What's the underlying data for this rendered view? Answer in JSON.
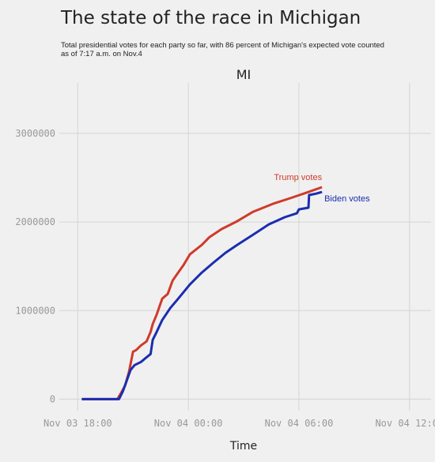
{
  "chart_data": {
    "type": "line",
    "title": "The state of the race in Michigan",
    "subtitle": "Total presidential votes for each party so far, with 86 percent of Michigan's expected vote counted as of 7:17 a.m. on Nov.4",
    "panel_title": "MI",
    "x_label": "Time",
    "xlim": [
      "Nov 03 17:00",
      "Nov 04 13:10"
    ],
    "xticks": [
      "Nov 03 18:00",
      "Nov 04 00:00",
      "Nov 04 06:00",
      "Nov 04 12:00"
    ],
    "ylim": [
      -130000,
      3570000
    ],
    "yticks": [
      0,
      1000000,
      2000000,
      3000000
    ],
    "grid": true,
    "series": [
      {
        "name": "Trump votes",
        "color": "#d03a2a",
        "x": [
          "Nov 03 18:13",
          "Nov 03 20:09",
          "Nov 03 20:21",
          "Nov 03 20:34",
          "Nov 03 20:47",
          "Nov 03 21:00",
          "Nov 03 21:10",
          "Nov 03 21:26",
          "Nov 03 21:44",
          "Nov 03 21:57",
          "Nov 03 22:04",
          "Nov 03 22:17",
          "Nov 03 22:35",
          "Nov 03 22:53",
          "Nov 03 23:09",
          "Nov 03 23:27",
          "Nov 03 23:45",
          "Nov 04 00:05",
          "Nov 04 00:44",
          "Nov 04 01:09",
          "Nov 04 01:48",
          "Nov 04 02:39",
          "Nov 04 03:31",
          "Nov 04 04:35",
          "Nov 04 05:39",
          "Nov 04 06:31",
          "Nov 04 07:15"
        ],
        "values": [
          0,
          0,
          71000,
          152000,
          313000,
          536000,
          554000,
          607000,
          652000,
          759000,
          848000,
          955000,
          1134000,
          1188000,
          1339000,
          1429000,
          1518000,
          1634000,
          1741000,
          1830000,
          1920000,
          2009000,
          2116000,
          2205000,
          2277000,
          2339000,
          2393000
        ]
      },
      {
        "name": "Biden votes",
        "color": "#1a2db0",
        "x": [
          "Nov 03 18:13",
          "Nov 03 20:14",
          "Nov 03 20:27",
          "Nov 03 20:39",
          "Nov 03 20:52",
          "Nov 03 21:05",
          "Nov 03 21:26",
          "Nov 03 21:44",
          "Nov 03 21:57",
          "Nov 03 22:04",
          "Nov 03 22:17",
          "Nov 03 22:35",
          "Nov 03 23:01",
          "Nov 03 23:27",
          "Nov 04 00:05",
          "Nov 04 00:44",
          "Nov 04 01:23",
          "Nov 04 02:01",
          "Nov 04 02:39",
          "Nov 04 03:31",
          "Nov 04 04:22",
          "Nov 04 05:14",
          "Nov 04 05:53",
          "Nov 04 06:00",
          "Nov 04 06:31",
          "Nov 04 06:33",
          "Nov 04 06:56",
          "Nov 04 07:15"
        ],
        "values": [
          0,
          0,
          89000,
          205000,
          330000,
          384000,
          420000,
          473000,
          509000,
          670000,
          759000,
          893000,
          1027000,
          1134000,
          1295000,
          1429000,
          1545000,
          1652000,
          1741000,
          1857000,
          1973000,
          2054000,
          2098000,
          2143000,
          2161000,
          2304000,
          2320000,
          2339000
        ]
      }
    ]
  }
}
